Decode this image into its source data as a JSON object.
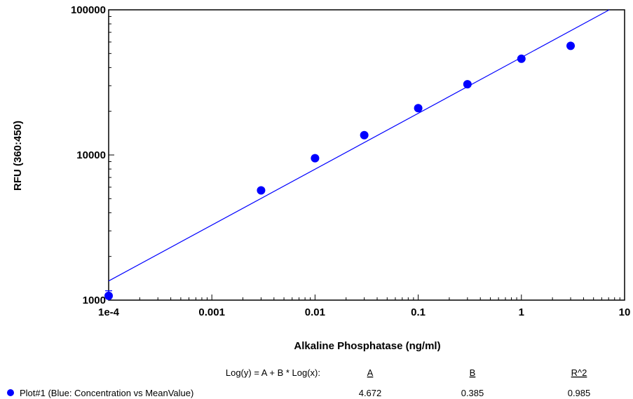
{
  "chart_data": {
    "type": "scatter",
    "xlabel": "Alkaline Phosphatase (ng/ml)",
    "ylabel": "RFU (360:450)",
    "x_scale": "log",
    "y_scale": "log",
    "xlim": [
      0.0001,
      10
    ],
    "ylim": [
      1000,
      100000
    ],
    "x_ticks": [
      {
        "value": 0.0001,
        "label": "1e-4"
      },
      {
        "value": 0.001,
        "label": "0.001"
      },
      {
        "value": 0.01,
        "label": "0.01"
      },
      {
        "value": 0.1,
        "label": "0.1"
      },
      {
        "value": 1,
        "label": "1"
      },
      {
        "value": 10,
        "label": "10"
      }
    ],
    "y_ticks": [
      {
        "value": 1000,
        "label": "1000"
      },
      {
        "value": 10000,
        "label": "10000"
      },
      {
        "value": 100000,
        "label": "100000"
      }
    ],
    "grid": false,
    "series": [
      {
        "color": "#0000ff",
        "points": [
          {
            "x": 0.0001,
            "y": 1070,
            "err": 90
          },
          {
            "x": 0.003,
            "y": 5700
          },
          {
            "x": 0.01,
            "y": 9500
          },
          {
            "x": 0.03,
            "y": 13700
          },
          {
            "x": 0.1,
            "y": 21000
          },
          {
            "x": 0.3,
            "y": 30700
          },
          {
            "x": 1,
            "y": 46000
          },
          {
            "x": 3,
            "y": 56500
          }
        ],
        "fit": {
          "type": "log-log linear",
          "A": 4.672,
          "B": 0.385
        }
      }
    ],
    "legend": {
      "placement": "bottom",
      "equation_label": "Log(y) = A + B * Log(x):",
      "col_a_header": "A",
      "col_b_header": "B",
      "col_r2_header": "R^2",
      "entry_label": "Plot#1 (Blue: Concentration vs MeanValue)",
      "a_value": "4.672",
      "b_value": "0.385",
      "r2_value": "0.985"
    }
  }
}
